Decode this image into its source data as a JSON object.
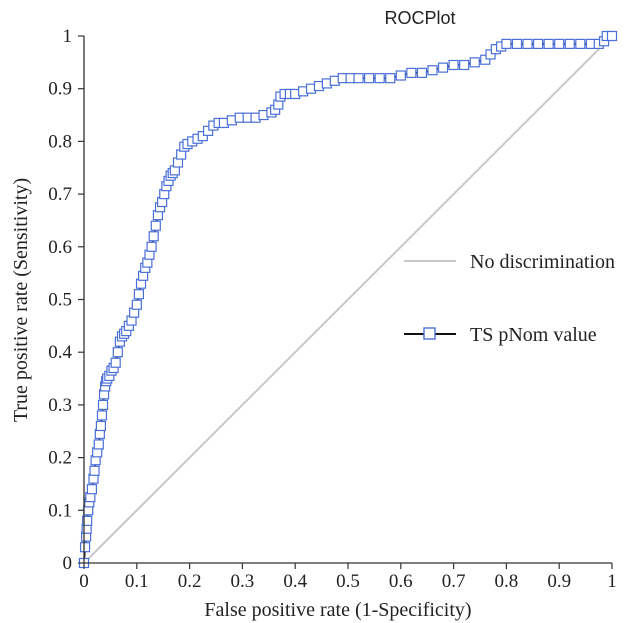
{
  "chart_data": {
    "type": "line",
    "title": "ROCPlot",
    "xlabel": "False positive rate (1-Specificity)",
    "ylabel": "True positive rate (Sensitivity)",
    "xlim": [
      0,
      1
    ],
    "ylim": [
      0,
      1
    ],
    "x_ticks": [
      "0",
      "0.1",
      "0.2",
      "0.3",
      "0.4",
      "0.5",
      "0.6",
      "0.7",
      "0.8",
      "0.9",
      "1"
    ],
    "y_ticks": [
      "0",
      "0.1",
      "0.2",
      "0.3",
      "0.4",
      "0.5",
      "0.6",
      "0.7",
      "0.8",
      "0.9",
      "1"
    ],
    "grid": false,
    "legend_position": "right",
    "colors": {
      "reference": "#c8c8c8",
      "roc_line": "#111111",
      "roc_marker": "#4a6fd8",
      "axis": "#333333"
    },
    "series": [
      {
        "name": "No discrimination",
        "style": "line",
        "x": [
          0,
          1
        ],
        "y": [
          0,
          1
        ]
      },
      {
        "name": "TS pNom value",
        "style": "line-square-markers",
        "x": [
          0.0,
          0.002,
          0.004,
          0.005,
          0.006,
          0.008,
          0.01,
          0.012,
          0.015,
          0.018,
          0.02,
          0.022,
          0.025,
          0.028,
          0.03,
          0.032,
          0.034,
          0.036,
          0.038,
          0.04,
          0.042,
          0.044,
          0.048,
          0.052,
          0.056,
          0.06,
          0.064,
          0.068,
          0.072,
          0.076,
          0.08,
          0.085,
          0.09,
          0.095,
          0.1,
          0.104,
          0.108,
          0.112,
          0.116,
          0.12,
          0.124,
          0.128,
          0.132,
          0.136,
          0.14,
          0.144,
          0.148,
          0.152,
          0.156,
          0.16,
          0.164,
          0.168,
          0.172,
          0.178,
          0.184,
          0.19,
          0.196,
          0.205,
          0.215,
          0.225,
          0.235,
          0.245,
          0.255,
          0.265,
          0.28,
          0.295,
          0.31,
          0.325,
          0.34,
          0.355,
          0.362,
          0.368,
          0.372,
          0.38,
          0.39,
          0.4,
          0.415,
          0.43,
          0.445,
          0.46,
          0.475,
          0.49,
          0.505,
          0.52,
          0.54,
          0.56,
          0.58,
          0.6,
          0.62,
          0.64,
          0.66,
          0.68,
          0.7,
          0.72,
          0.74,
          0.76,
          0.77,
          0.78,
          0.79,
          0.8,
          0.82,
          0.84,
          0.86,
          0.88,
          0.9,
          0.92,
          0.94,
          0.96,
          0.975,
          0.985,
          0.99,
          1.0
        ],
        "y": [
          0.0,
          0.03,
          0.05,
          0.065,
          0.08,
          0.1,
          0.115,
          0.125,
          0.14,
          0.16,
          0.175,
          0.195,
          0.21,
          0.225,
          0.245,
          0.26,
          0.28,
          0.3,
          0.32,
          0.335,
          0.345,
          0.35,
          0.355,
          0.365,
          0.37,
          0.38,
          0.4,
          0.42,
          0.43,
          0.435,
          0.44,
          0.45,
          0.46,
          0.475,
          0.49,
          0.51,
          0.53,
          0.545,
          0.56,
          0.57,
          0.585,
          0.6,
          0.62,
          0.64,
          0.66,
          0.675,
          0.685,
          0.7,
          0.715,
          0.725,
          0.735,
          0.74,
          0.745,
          0.76,
          0.775,
          0.79,
          0.795,
          0.8,
          0.805,
          0.81,
          0.82,
          0.83,
          0.835,
          0.835,
          0.84,
          0.845,
          0.845,
          0.845,
          0.85,
          0.855,
          0.86,
          0.87,
          0.885,
          0.89,
          0.89,
          0.89,
          0.895,
          0.9,
          0.905,
          0.91,
          0.915,
          0.92,
          0.92,
          0.92,
          0.92,
          0.92,
          0.92,
          0.925,
          0.93,
          0.93,
          0.935,
          0.94,
          0.945,
          0.945,
          0.95,
          0.955,
          0.965,
          0.975,
          0.98,
          0.985,
          0.985,
          0.985,
          0.985,
          0.985,
          0.985,
          0.985,
          0.985,
          0.985,
          0.985,
          0.99,
          1.0,
          1.0
        ]
      }
    ]
  }
}
